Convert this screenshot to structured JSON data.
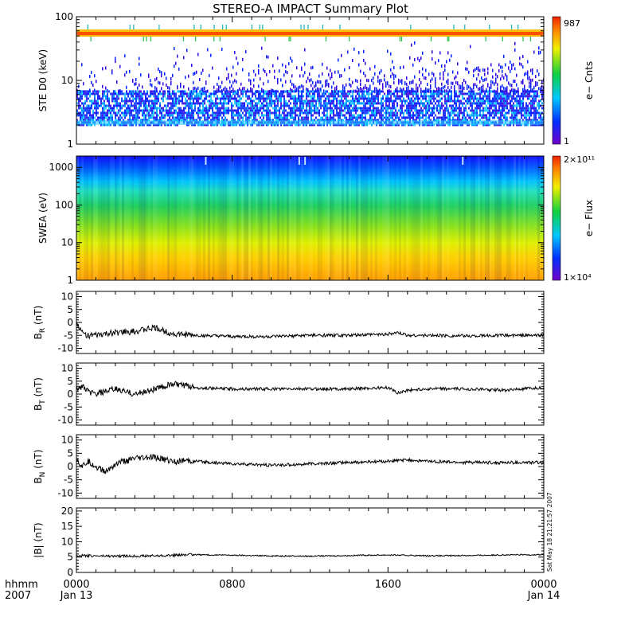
{
  "title": "STEREO-A IMPACT Summary Plot",
  "timestamp": "Sat May 18 21:21:57 2007",
  "time_axis": {
    "corner_label": "hhmm",
    "corner_year": "2007",
    "ticks": [
      {
        "hhmm": "0000",
        "date": "Jan 13"
      },
      {
        "hhmm": "0800",
        "date": ""
      },
      {
        "hhmm": "1600",
        "date": ""
      },
      {
        "hhmm": "0000",
        "date": "Jan 14"
      }
    ]
  },
  "chart_data": [
    {
      "type": "heatmap",
      "ylabel": "STE D0 (keV)",
      "yscale": "log",
      "ylim": [
        1,
        100
      ],
      "yticks": [
        "1",
        "10",
        "100"
      ],
      "xlim_hours": [
        0,
        24
      ],
      "colorbar": {
        "label": "e− Cnts",
        "min": "1",
        "max": "987"
      },
      "features": {
        "saturated_band_keV": [
          60,
          68
        ],
        "dense_band_keV": [
          2,
          7
        ]
      }
    },
    {
      "type": "heatmap",
      "ylabel": "SWEA (eV)",
      "yscale": "log",
      "ylim": [
        1,
        2000
      ],
      "yticks": [
        "1",
        "10",
        "100",
        "1000"
      ],
      "xlim_hours": [
        0,
        24
      ],
      "colorbar": {
        "label": "e− Flux",
        "min": "1×10⁴",
        "max": "2×10¹¹"
      }
    },
    {
      "type": "line",
      "ylabel_main": "B",
      "ylabel_sub": "R",
      "ylabel_unit": " (nT)",
      "ylim": [
        -12,
        12
      ],
      "yticks": [
        "-10",
        "-5",
        "0",
        "5",
        "10"
      ],
      "x": [
        0,
        0.3,
        0.6,
        1,
        1.5,
        2,
        3,
        4,
        5,
        6,
        8,
        10,
        12,
        14,
        16,
        16.5,
        17,
        18,
        20,
        22,
        24
      ],
      "y": [
        0,
        -4,
        -5,
        -5,
        -4.5,
        -4,
        -3.5,
        -2,
        -4.5,
        -5,
        -5.5,
        -5.5,
        -5,
        -5,
        -4.5,
        -4,
        -5,
        -5,
        -5.2,
        -5,
        -5
      ]
    },
    {
      "type": "line",
      "ylabel_main": "B",
      "ylabel_sub": "T",
      "ylabel_unit": " (nT)",
      "ylim": [
        -12,
        12
      ],
      "yticks": [
        "-10",
        "-5",
        "0",
        "5",
        "10"
      ],
      "x": [
        0,
        0.3,
        0.6,
        1,
        1.5,
        2,
        2.5,
        3,
        4,
        4.5,
        5,
        6,
        8,
        10,
        12,
        14,
        16,
        16.5,
        17,
        18,
        20,
        22,
        24
      ],
      "y": [
        2,
        3,
        1,
        0,
        1,
        2,
        1,
        0,
        2,
        3,
        4,
        2.5,
        2,
        2,
        2,
        2,
        2.5,
        0.5,
        1.5,
        2,
        2,
        1.5,
        2.5
      ]
    },
    {
      "type": "line",
      "ylabel_main": "B",
      "ylabel_sub": "N",
      "ylabel_unit": " (nT)",
      "ylim": [
        -12,
        12
      ],
      "yticks": [
        "-10",
        "-5",
        "0",
        "5",
        "10"
      ],
      "x": [
        0,
        0.3,
        0.6,
        1,
        1.5,
        2,
        2.5,
        3,
        4,
        5,
        6,
        8,
        10,
        12,
        14,
        16,
        17,
        18,
        20,
        22,
        24
      ],
      "y": [
        3,
        0,
        2,
        0,
        -2,
        1,
        2,
        3,
        3.5,
        2,
        2,
        1,
        0.5,
        1,
        1.5,
        2,
        2.5,
        2,
        1.5,
        1.5,
        1.5
      ]
    },
    {
      "type": "line",
      "ylabel_main": "|B|",
      "ylabel_sub": "",
      "ylabel_unit": " (nT)",
      "ylim": [
        0,
        21
      ],
      "yticks": [
        "0",
        "5",
        "10",
        "15",
        "20"
      ],
      "x": [
        0,
        2,
        4,
        6,
        8,
        10,
        12,
        14,
        16,
        18,
        20,
        22,
        24
      ],
      "y": [
        5.5,
        5.3,
        5.4,
        5.8,
        5.6,
        5.4,
        5.3,
        5.5,
        5.7,
        5.4,
        5.5,
        5.7,
        5.8
      ]
    }
  ]
}
